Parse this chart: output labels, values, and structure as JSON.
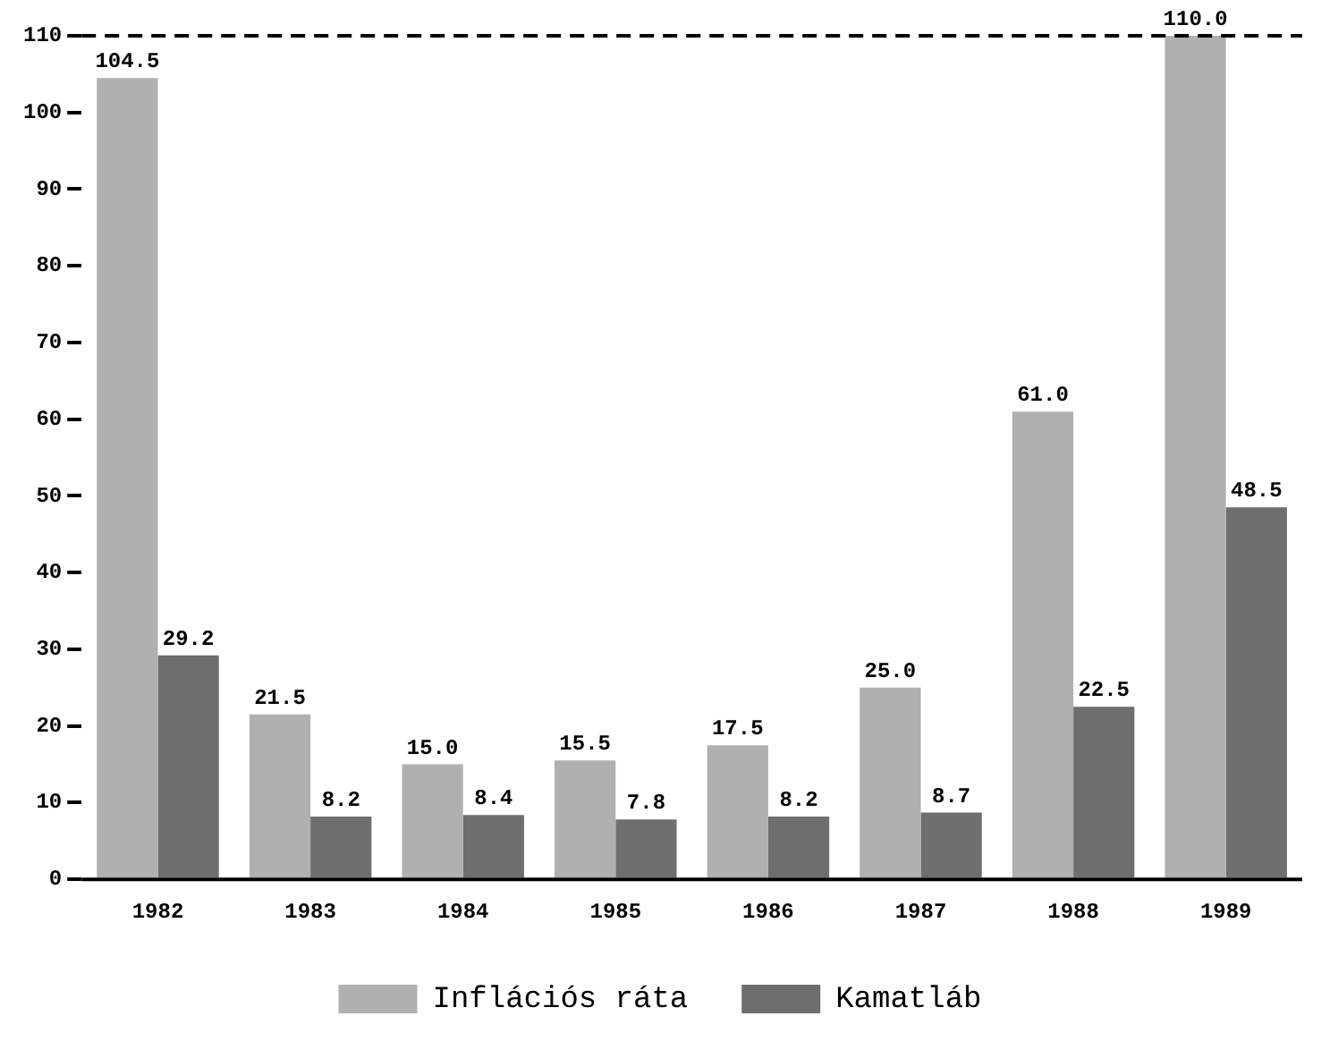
{
  "chart_data": {
    "type": "bar",
    "categories": [
      "1982",
      "1983",
      "1984",
      "1985",
      "1986",
      "1987",
      "1988",
      "1989"
    ],
    "series": [
      {
        "name": "Inflációs ráta",
        "color": "#b0b0b0",
        "values": [
          104.5,
          21.5,
          15.0,
          15.5,
          17.5,
          25.0,
          61.0,
          110.0
        ],
        "value_labels": [
          "104.5",
          "21.5",
          "15.0",
          "15.5",
          "17.5",
          "25.0",
          "61.0",
          "110.0"
        ]
      },
      {
        "name": "Kamatláb",
        "color": "#6e6e6e",
        "values": [
          29.2,
          8.2,
          8.4,
          7.8,
          8.2,
          8.7,
          22.5,
          48.5
        ],
        "value_labels": [
          "29.2",
          "8.2",
          "8.4",
          "7.8",
          "8.2",
          "8.7",
          "22.5",
          "48.5"
        ]
      }
    ],
    "ylim": [
      0,
      110
    ],
    "yticks": [
      0,
      10,
      20,
      30,
      40,
      50,
      60,
      70,
      80,
      90,
      100,
      110
    ],
    "ref_lines": [
      {
        "axis": "y",
        "value": 110,
        "line_style": "dashed"
      }
    ],
    "grid": false,
    "legend": "bottom"
  }
}
